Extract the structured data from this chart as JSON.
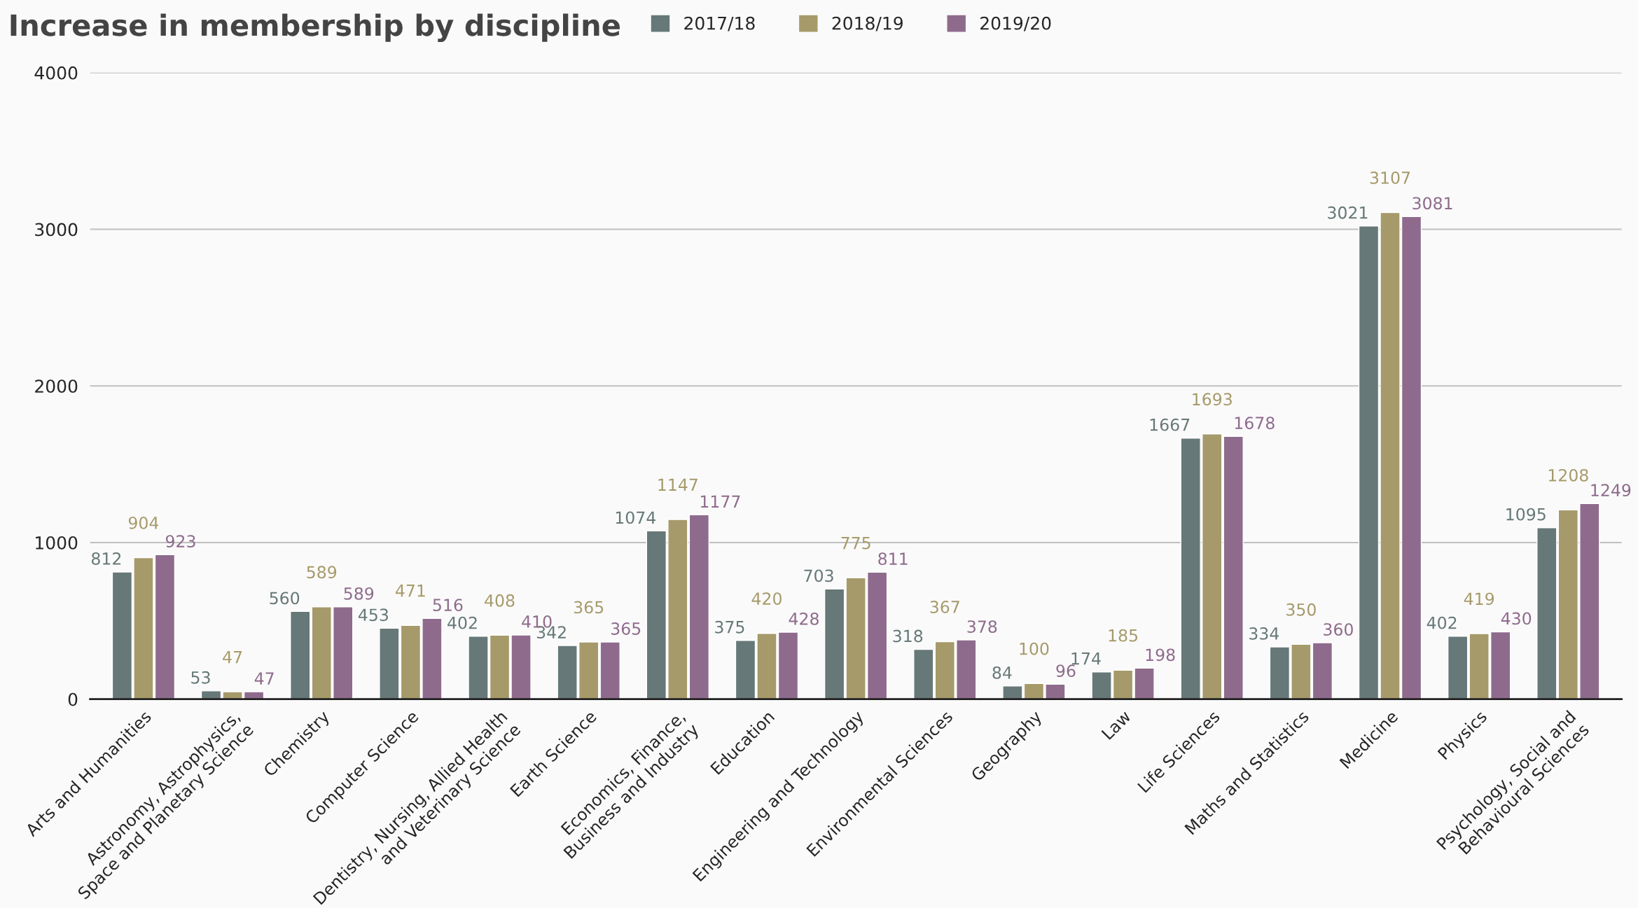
{
  "chart_data": {
    "type": "bar",
    "title": "Increase in membership by discipline",
    "categories": [
      "Arts and Humanities",
      "Astronomy, Astrophysics,\nSpace and Planetary Science",
      "Chemistry",
      "Computer Science",
      "Dentistry, Nursing, Allied Health\nand Veterinary Science",
      "Earth Science",
      "Economics, Finance,\nBusiness and Industry",
      "Education",
      "Engineering and Technology",
      "Environmental Sciences",
      "Geography",
      "Law",
      "Life Sciences",
      "Maths and Statistics",
      "Medicine",
      "Physics",
      "Psychology, Social and\nBehavioural Sciences"
    ],
    "series": [
      {
        "name": "2017/18",
        "color": "#667877",
        "values": [
          812,
          53,
          560,
          453,
          402,
          342,
          1074,
          375,
          703,
          318,
          84,
          174,
          1667,
          334,
          3021,
          402,
          1095
        ]
      },
      {
        "name": "2018/19",
        "color": "#a69a6a",
        "values": [
          904,
          47,
          589,
          471,
          408,
          365,
          1147,
          420,
          775,
          367,
          100,
          185,
          1693,
          350,
          3107,
          419,
          1208
        ]
      },
      {
        "name": "2019/20",
        "color": "#8e6b8c",
        "values": [
          923,
          47,
          589,
          516,
          410,
          365,
          1177,
          428,
          811,
          378,
          96,
          198,
          1678,
          360,
          3081,
          430,
          1249
        ]
      }
    ],
    "ylim": [
      0,
      4000
    ],
    "yticks": [
      0,
      1000,
      2000,
      3000,
      4000
    ],
    "grid": "y",
    "legend": "top",
    "data_labels": true
  }
}
